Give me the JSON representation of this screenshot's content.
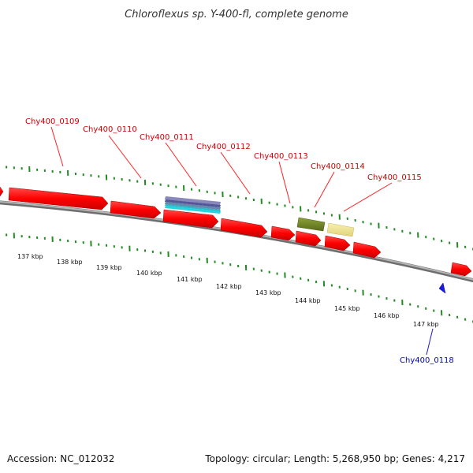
{
  "title": "Chloroflexus sp. Y-400-fl, complete genome",
  "footer": {
    "accession": "Accession: NC_012032",
    "topology": "Topology: circular; Length: 5,268,950 bp; Genes: 4,217"
  },
  "colors": {
    "forward_gene": "#ff0000",
    "reverse_label": "#0000cc",
    "forward_label": "#cc0000",
    "tick": "#228b22",
    "backbone": "#888888"
  },
  "scale": {
    "labels": [
      "137 kbp",
      "138 kbp",
      "139 kbp",
      "140 kbp",
      "141 kbp",
      "142 kbp",
      "143 kbp",
      "144 kbp",
      "145 kbp",
      "146 kbp",
      "147 kbp"
    ]
  },
  "genes": {
    "labels": [
      {
        "id": "g109",
        "text": "Chy400_0109",
        "strand": "forward"
      },
      {
        "id": "g110",
        "text": "Chy400_0110",
        "strand": "forward"
      },
      {
        "id": "g111",
        "text": "Chy400_0111",
        "strand": "forward"
      },
      {
        "id": "g112",
        "text": "Chy400_0112",
        "strand": "forward"
      },
      {
        "id": "g113",
        "text": "Chy400_0113",
        "strand": "forward"
      },
      {
        "id": "g114",
        "text": "Chy400_0114",
        "strand": "forward"
      },
      {
        "id": "g115",
        "text": "Chy400_0115",
        "strand": "forward"
      },
      {
        "id": "g118",
        "text": "Chy400_0118",
        "strand": "reverse"
      }
    ]
  }
}
